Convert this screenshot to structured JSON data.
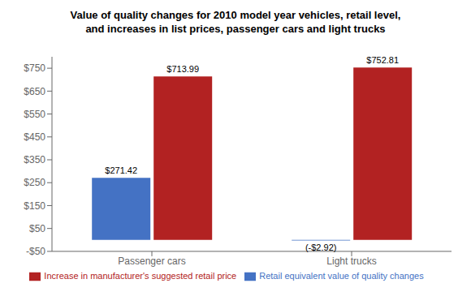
{
  "chart_data": {
    "type": "bar",
    "title": "Value of quality changes for 2010 model year vehicles, retail level,\nand increases in list prices, passenger cars and light trucks",
    "categories": [
      "Passenger cars",
      "Light trucks"
    ],
    "series": [
      {
        "name": "Retail equivalent value of quality changes",
        "color": "#4472C4",
        "values": [
          271.42,
          -2.92
        ],
        "value_labels": [
          "$271.42",
          "(-$2.92)"
        ]
      },
      {
        "name": "Increase in manufacturer's suggested retail price",
        "color": "#B22222",
        "values": [
          713.99,
          752.81
        ],
        "value_labels": [
          "$713.99",
          "$752.81"
        ]
      }
    ],
    "ylim": [
      -50,
      800
    ],
    "yticks": [
      {
        "value": -50,
        "label": "-$50"
      },
      {
        "value": 50,
        "label": "$50"
      },
      {
        "value": 150,
        "label": "$150"
      },
      {
        "value": 250,
        "label": "$250"
      },
      {
        "value": 350,
        "label": "$350"
      },
      {
        "value": 450,
        "label": "$450"
      },
      {
        "value": 550,
        "label": "$550"
      },
      {
        "value": 650,
        "label": "$650"
      },
      {
        "value": 750,
        "label": "$750"
      }
    ],
    "grid": false,
    "legend": "bottom",
    "data_labels": true
  }
}
